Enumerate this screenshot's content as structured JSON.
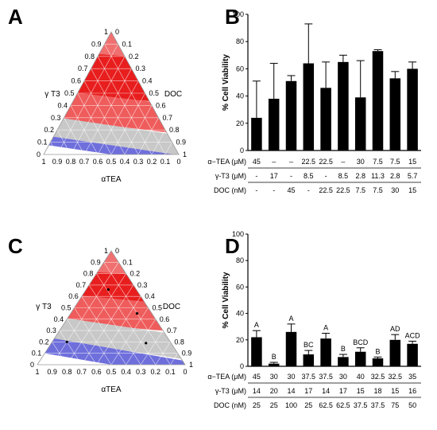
{
  "panels": [
    "A",
    "B",
    "C",
    "D"
  ],
  "chart_data": [
    {
      "panel": "A",
      "type": "ternary",
      "axes": {
        "gamma": "γ T3",
        "doc": "DOC",
        "alpha": "αTEA"
      },
      "ticks": [
        "0",
        "0.1",
        "0.2",
        "0.3",
        "0.4",
        "0.5",
        "0.6",
        "0.7",
        "0.8",
        "0.9",
        "1"
      ],
      "regions": [
        {
          "color": "#f07070",
          "u_range": [
            0.78,
            1.0
          ],
          "u_tilt": 0.02
        },
        {
          "color": "#e81e1e",
          "u_range": [
            0.44,
            0.78
          ],
          "u_tilt": 0.06
        },
        {
          "color": "#ef5c5c",
          "u_range": [
            0.22,
            0.44
          ],
          "u_tilt": 0.1
        },
        {
          "color": "#c8c8c8",
          "u_range": [
            0.07,
            0.22
          ],
          "u_tilt": 0.12
        },
        {
          "color": "#6f6fdc",
          "u_range": [
            0.0,
            0.07
          ],
          "u_tilt": 0.12
        }
      ],
      "points": []
    },
    {
      "panel": "C",
      "type": "ternary",
      "axes": {
        "gamma": "γ T3",
        "doc": "DOC",
        "alpha": "αTEA"
      },
      "ticks": [
        "0",
        "0.1",
        "0.2",
        "0.3",
        "0.4",
        "0.5",
        "0.6",
        "0.7",
        "0.8",
        "0.9",
        "1"
      ],
      "regions": [
        {
          "color": "#f07070",
          "u_range": [
            0.78,
            1.0
          ],
          "u_tilt": 0.02
        },
        {
          "color": "#e81e1e",
          "u_range": [
            0.55,
            0.78
          ],
          "u_tilt": 0.05
        },
        {
          "color": "#ef5c5c",
          "u_range": [
            0.32,
            0.55
          ],
          "u_tilt": 0.09
        },
        {
          "color": "#c8c8c8",
          "u_range": [
            0.13,
            0.32
          ],
          "u_tilt": 0.14
        },
        {
          "color": "#6f6fdc",
          "u_range": [
            0.0,
            0.13
          ],
          "u_tilt": 0.16
        }
      ],
      "points": [
        {
          "gamma": 0.66,
          "doc": 0.15
        },
        {
          "gamma": 0.45,
          "doc": 0.45
        },
        {
          "gamma": 0.2,
          "doc": 0.1
        },
        {
          "gamma": 0.19,
          "doc": 0.64
        }
      ]
    },
    {
      "panel": "B",
      "type": "bar",
      "ylabel": "% Cell Viability",
      "ylim": [
        0,
        100
      ],
      "yticks": [
        0,
        20,
        40,
        60,
        80,
        100
      ],
      "values": [
        24,
        38,
        51,
        64,
        46,
        65,
        39,
        73,
        53,
        60
      ],
      "errors": [
        27,
        26,
        4,
        29,
        19,
        5,
        27,
        1,
        5,
        5
      ],
      "letters": [],
      "table": [
        {
          "label": "α−TEA (μM)",
          "values": [
            "45",
            "–",
            "–",
            "22.5",
            "22.5",
            "–",
            "30",
            "7.5",
            "7.5",
            "15"
          ]
        },
        {
          "label": "γ-T3 (μM)",
          "values": [
            "-",
            "17",
            "-",
            "8.5",
            "-",
            "8.5",
            "2.8",
            "11.3",
            "2.8",
            "5.7"
          ]
        },
        {
          "label": "DOC (nM)",
          "values": [
            "-",
            "-",
            "45",
            "-",
            "22.5",
            "22.5",
            "7.5",
            "7.5",
            "30",
            "15"
          ]
        }
      ]
    },
    {
      "panel": "D",
      "type": "bar",
      "ylabel": "% Cell Viability",
      "ylim": [
        0,
        100
      ],
      "yticks": [
        0,
        20,
        40,
        60,
        80,
        100
      ],
      "values": [
        22,
        2,
        26,
        9,
        21,
        7,
        11,
        6,
        20,
        17
      ],
      "errors": [
        5,
        1,
        6,
        3,
        4,
        2,
        3,
        1,
        4,
        2
      ],
      "letters": [
        "A",
        "B",
        "A",
        "BC",
        "A",
        "B",
        "BCD",
        "B",
        "AD",
        "ACD"
      ],
      "table": [
        {
          "label": "α−TEA (μM)",
          "values": [
            "45",
            "30",
            "30",
            "37.5",
            "37.5",
            "30",
            "40",
            "32.5",
            "32.5",
            "35"
          ]
        },
        {
          "label": "γ-T3 (μM)",
          "values": [
            "14",
            "20",
            "14",
            "17",
            "14",
            "17",
            "15",
            "18",
            "15",
            "16"
          ]
        },
        {
          "label": "DOC (nM)",
          "values": [
            "25",
            "25",
            "100",
            "25",
            "62.5",
            "62.5",
            "37.5",
            "37.5",
            "75",
            "50"
          ]
        }
      ]
    }
  ]
}
